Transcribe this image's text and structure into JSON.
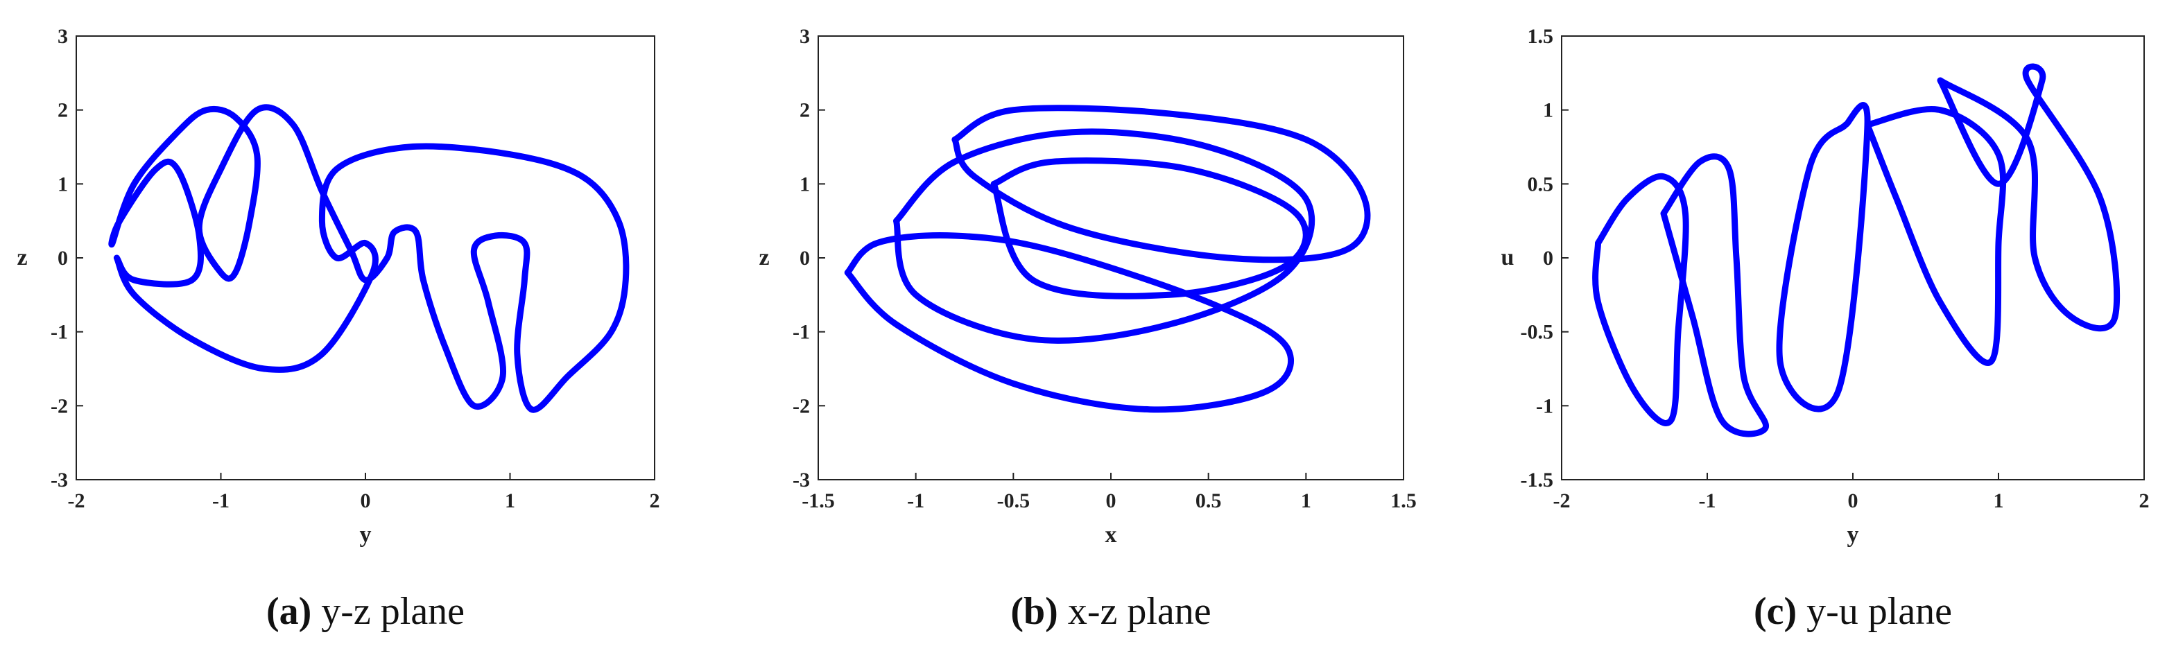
{
  "chart_data": [
    {
      "type": "line",
      "caption_label": "(a)",
      "caption": "y-z plane",
      "xlabel": "y",
      "ylabel": "z",
      "color": "#0000ff",
      "xlim": [
        -2,
        2
      ],
      "ylim": [
        -3,
        3
      ],
      "xticks": [
        -2,
        -1,
        0,
        1,
        2
      ],
      "yticks": [
        -3,
        -2,
        -1,
        0,
        1,
        2,
        3
      ],
      "series": [
        {
          "x": [
            -1.72,
            -1.6,
            -1.2,
            -1.15,
            -1.3,
            -1.45,
            -1.7,
            -1.75,
            -1.6,
            -1.3,
            -1.1,
            -0.9,
            -0.75,
            -0.8,
            -0.9,
            -1.0,
            -1.15,
            -1.0,
            -0.75,
            -0.5,
            -0.3,
            -0.1,
            0.0,
            0.15,
            0.2,
            0.35,
            0.4,
            0.55,
            0.75,
            0.95,
            0.85,
            0.75,
            0.9,
            1.1,
            1.1,
            1.05,
            1.15,
            1.4,
            1.7,
            1.8,
            1.75,
            1.5,
            1.0,
            0.3,
            -0.2,
            -0.3,
            -0.2,
            0.0,
            0.05,
            -0.3,
            -0.7,
            -1.2,
            -1.6,
            -1.72
          ],
          "y": [
            0.0,
            -0.3,
            -0.3,
            0.3,
            1.2,
            1.2,
            0.5,
            0.2,
            1.0,
            1.7,
            2.0,
            1.9,
            1.4,
            0.5,
            -0.2,
            -0.2,
            0.4,
            1.2,
            2.0,
            1.8,
            0.9,
            0.1,
            -0.3,
            0.0,
            0.35,
            0.35,
            -0.3,
            -1.2,
            -2.0,
            -1.6,
            -0.6,
            0.1,
            0.3,
            0.2,
            -0.3,
            -1.3,
            -2.05,
            -1.6,
            -1.0,
            -0.3,
            0.5,
            1.1,
            1.4,
            1.5,
            1.2,
            0.5,
            0.0,
            0.2,
            -0.2,
            -1.3,
            -1.5,
            -1.1,
            -0.5,
            0.0
          ]
        }
      ]
    },
    {
      "type": "line",
      "caption_label": "(b)",
      "caption": "x-z plane",
      "xlabel": "x",
      "ylabel": "z",
      "color": "#0000ff",
      "xlim": [
        -1.5,
        1.5
      ],
      "ylim": [
        -3,
        3
      ],
      "xticks": [
        -1.5,
        -1,
        -0.5,
        0,
        0.5,
        1,
        1.5
      ],
      "yticks": [
        -3,
        -2,
        -1,
        0,
        1,
        2,
        3
      ],
      "series": [
        {
          "x": [
            -1.35,
            -1.1,
            -0.5,
            0.2,
            0.8,
            0.9,
            0.5,
            -0.3,
            -0.8,
            -1.2,
            -1.35
          ],
          "y": [
            -0.2,
            -0.9,
            -1.7,
            -2.05,
            -1.8,
            -1.2,
            -0.6,
            0.1,
            0.3,
            0.2,
            -0.2
          ]
        },
        {
          "x": [
            -1.1,
            -0.8,
            -0.2,
            0.5,
            1.0,
            0.9,
            0.3,
            -0.4,
            -1.0,
            -1.1
          ],
          "y": [
            0.5,
            1.3,
            1.7,
            1.5,
            0.8,
            -0.2,
            -0.9,
            -1.1,
            -0.5,
            0.5
          ]
        },
        {
          "x": [
            -0.8,
            -0.5,
            0.3,
            1.0,
            1.3,
            1.2,
            0.6,
            -0.2,
            -0.7,
            -0.8
          ],
          "y": [
            1.6,
            2.0,
            1.95,
            1.6,
            0.8,
            0.1,
            0.0,
            0.4,
            1.1,
            1.6
          ]
        },
        {
          "x": [
            -0.6,
            -0.3,
            0.4,
            0.95,
            0.9,
            0.3,
            -0.4,
            -0.6
          ],
          "y": [
            1.0,
            1.3,
            1.2,
            0.6,
            -0.1,
            -0.5,
            -0.3,
            1.0
          ]
        }
      ]
    },
    {
      "type": "line",
      "caption_label": "(c)",
      "caption": "y-u plane",
      "xlabel": "y",
      "ylabel": "u",
      "color": "#0000ff",
      "xlim": [
        -2,
        2
      ],
      "ylim": [
        -1.5,
        1.5
      ],
      "xticks": [
        -2,
        -1,
        0,
        1,
        2
      ],
      "yticks": [
        -1.5,
        -1,
        -0.5,
        0,
        0.5,
        1,
        1.5
      ],
      "series": [
        {
          "x": [
            -1.75,
            -1.55,
            -1.3,
            -1.15,
            -1.2,
            -1.25,
            -1.5,
            -1.75,
            -1.75
          ],
          "y": [
            0.1,
            0.4,
            0.55,
            0.3,
            -0.5,
            -1.1,
            -0.9,
            -0.3,
            0.1
          ]
        },
        {
          "x": [
            -1.3,
            -1.05,
            -0.85,
            -0.8,
            -0.75,
            -0.6,
            -0.9,
            -1.1,
            -1.3
          ],
          "y": [
            0.3,
            0.65,
            0.6,
            0.0,
            -0.8,
            -1.15,
            -1.1,
            -0.4,
            0.3
          ]
        },
        {
          "x": [
            -0.05,
            0.1,
            -0.1,
            -0.5,
            -0.3,
            -0.05
          ],
          "y": [
            0.9,
            0.9,
            -0.9,
            -0.7,
            0.6,
            0.9
          ]
        },
        {
          "x": [
            0.1,
            0.6,
            1.0,
            1.0,
            0.95,
            0.6,
            0.3,
            0.1
          ],
          "y": [
            0.9,
            1.0,
            0.7,
            0.1,
            -0.7,
            -0.3,
            0.4,
            0.9
          ]
        },
        {
          "x": [
            0.6,
            1.2,
            1.25,
            1.5,
            1.8,
            1.7,
            1.2,
            1.3,
            1.0,
            0.6
          ],
          "y": [
            1.2,
            0.8,
            0.0,
            -0.4,
            -0.4,
            0.4,
            1.2,
            1.2,
            0.5,
            1.2
          ]
        }
      ]
    }
  ]
}
